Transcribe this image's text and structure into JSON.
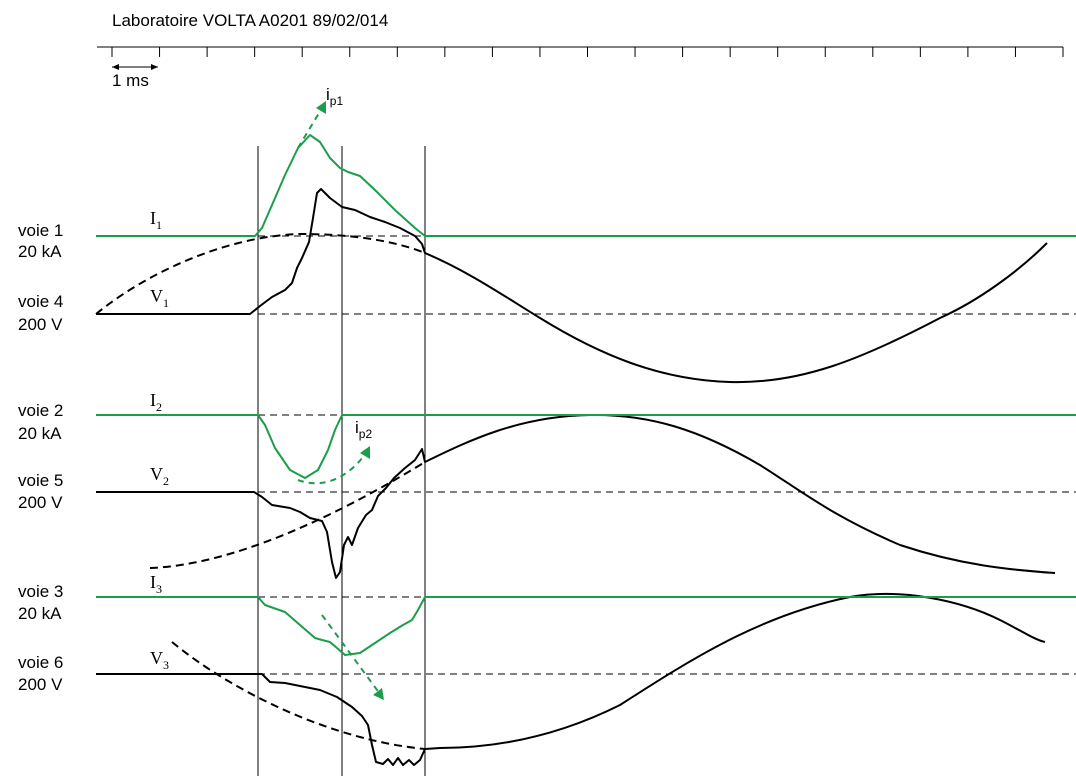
{
  "header": "Laboratoire VOLTA   A0201   89/02/014",
  "scale_label": "1 ms",
  "colors": {
    "current": "#1a9e4a",
    "voltage": "#000000"
  },
  "chart_data": {
    "type": "line",
    "title": "Laboratoire VOLTA   A0201   89/02/014",
    "time_unit": "ms",
    "time_axis": {
      "range": [
        0,
        20
      ],
      "ticks": 20,
      "scale_bar": "1 ms"
    },
    "grid": false,
    "channels": [
      {
        "id": "voie 1",
        "label": "voie 1",
        "scale": "20 kA",
        "signal": "I",
        "sub": "1",
        "color": "#1a9e4a"
      },
      {
        "id": "voie 4",
        "label": "voie 4",
        "scale": "200 V",
        "signal": "V",
        "sub": "1",
        "color": "#000000"
      },
      {
        "id": "voie 2",
        "label": "voie 2",
        "scale": "20 kA",
        "signal": "I",
        "sub": "2",
        "color": "#1a9e4a"
      },
      {
        "id": "voie 5",
        "label": "voie 5",
        "scale": "200 V",
        "signal": "V",
        "sub": "2",
        "color": "#000000"
      },
      {
        "id": "voie 3",
        "label": "voie 3",
        "scale": "20 kA",
        "signal": "I",
        "sub": "3",
        "color": "#1a9e4a"
      },
      {
        "id": "voie 6",
        "label": "voie 6",
        "scale": "200 V",
        "signal": "V",
        "sub": "3",
        "color": "#000000"
      }
    ],
    "annotations": [
      {
        "label": "i",
        "sub": "p1"
      },
      {
        "label": "i",
        "sub": "p2"
      }
    ]
  }
}
